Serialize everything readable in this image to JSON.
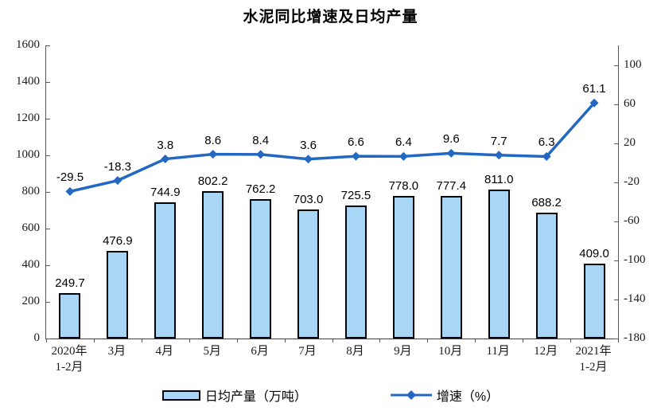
{
  "chart_data": {
    "type": "combo",
    "title": "水泥同比增速及日均产量",
    "categories": [
      "2020年\n1-2月",
      "3月",
      "4月",
      "5月",
      "6月",
      "7月",
      "8月",
      "9月",
      "10月",
      "11月",
      "12月",
      "2021年\n1-2月"
    ],
    "series": [
      {
        "name": "日均产量（万吨）",
        "type": "bar",
        "axis": "left",
        "values": [
          249.7,
          476.9,
          744.9,
          802.2,
          762.2,
          703.0,
          725.5,
          778.0,
          777.4,
          811.0,
          688.2,
          409.0
        ]
      },
      {
        "name": "增速（%）",
        "type": "line",
        "axis": "right",
        "values": [
          -29.5,
          -18.3,
          3.8,
          8.6,
          8.4,
          3.6,
          6.6,
          6.4,
          9.6,
          7.7,
          6.3,
          61.1
        ]
      }
    ],
    "left_axis": {
      "min": 0,
      "max": 1600,
      "tick_interval": 200,
      "tick_labels": [
        "0",
        "200",
        "400",
        "600",
        "800",
        "1000",
        "1200",
        "1400",
        "1600"
      ]
    },
    "right_axis": {
      "min": -180,
      "max": 120,
      "tick_interval": 40,
      "tick_labels": [
        "100",
        "60",
        "20",
        "-20",
        "-60",
        "-100",
        "-140",
        "-180"
      ]
    },
    "grid": false,
    "legend_position": "bottom",
    "data_labels": true,
    "colors": {
      "bar_fill": "#A9D6F5",
      "bar_border": "#000000",
      "line": "#2268C2",
      "axis": "#595959",
      "tick_label": "#1a1a1a",
      "data_label": "#000000"
    }
  }
}
